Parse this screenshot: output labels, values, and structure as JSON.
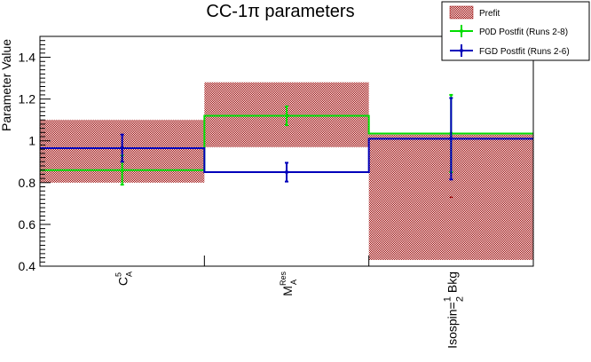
{
  "chart_data": {
    "type": "bar",
    "title": "CC-1π parameters",
    "ylabel": "Parameter Value",
    "xlabel": "",
    "ylim": [
      0.4,
      1.5
    ],
    "yticks": [
      0.4,
      0.6,
      0.8,
      1,
      1.2,
      1.4
    ],
    "categories": [
      {
        "main": "C",
        "sup": "5",
        "sub": "A"
      },
      {
        "main": "M",
        "sup": "Res",
        "sub": "A"
      },
      {
        "main": "Isospin=",
        "frac_num": "1",
        "frac_den": "2",
        "tail": " Bkg"
      }
    ],
    "legend_position": "top-right",
    "series": [
      {
        "name": "Prefit",
        "style": "hatched-band",
        "color": "#990000",
        "center": [
          0.95,
          1.125,
          0.73
        ],
        "low": [
          0.8,
          0.97,
          0.43
        ],
        "high": [
          1.1,
          1.28,
          1.03
        ]
      },
      {
        "name": "P0D Postfit (Runs 2-8)",
        "style": "step-errorbar",
        "color": "#00dd00",
        "values": [
          0.86,
          1.12,
          1.035
        ],
        "errors": [
          0.07,
          0.045,
          0.185
        ]
      },
      {
        "name": "FGD Postfit (Runs 2-6)",
        "style": "step-errorbar",
        "color": "#0000bb",
        "values": [
          0.965,
          0.85,
          1.01
        ],
        "errors": [
          0.065,
          0.045,
          0.195
        ]
      }
    ]
  }
}
